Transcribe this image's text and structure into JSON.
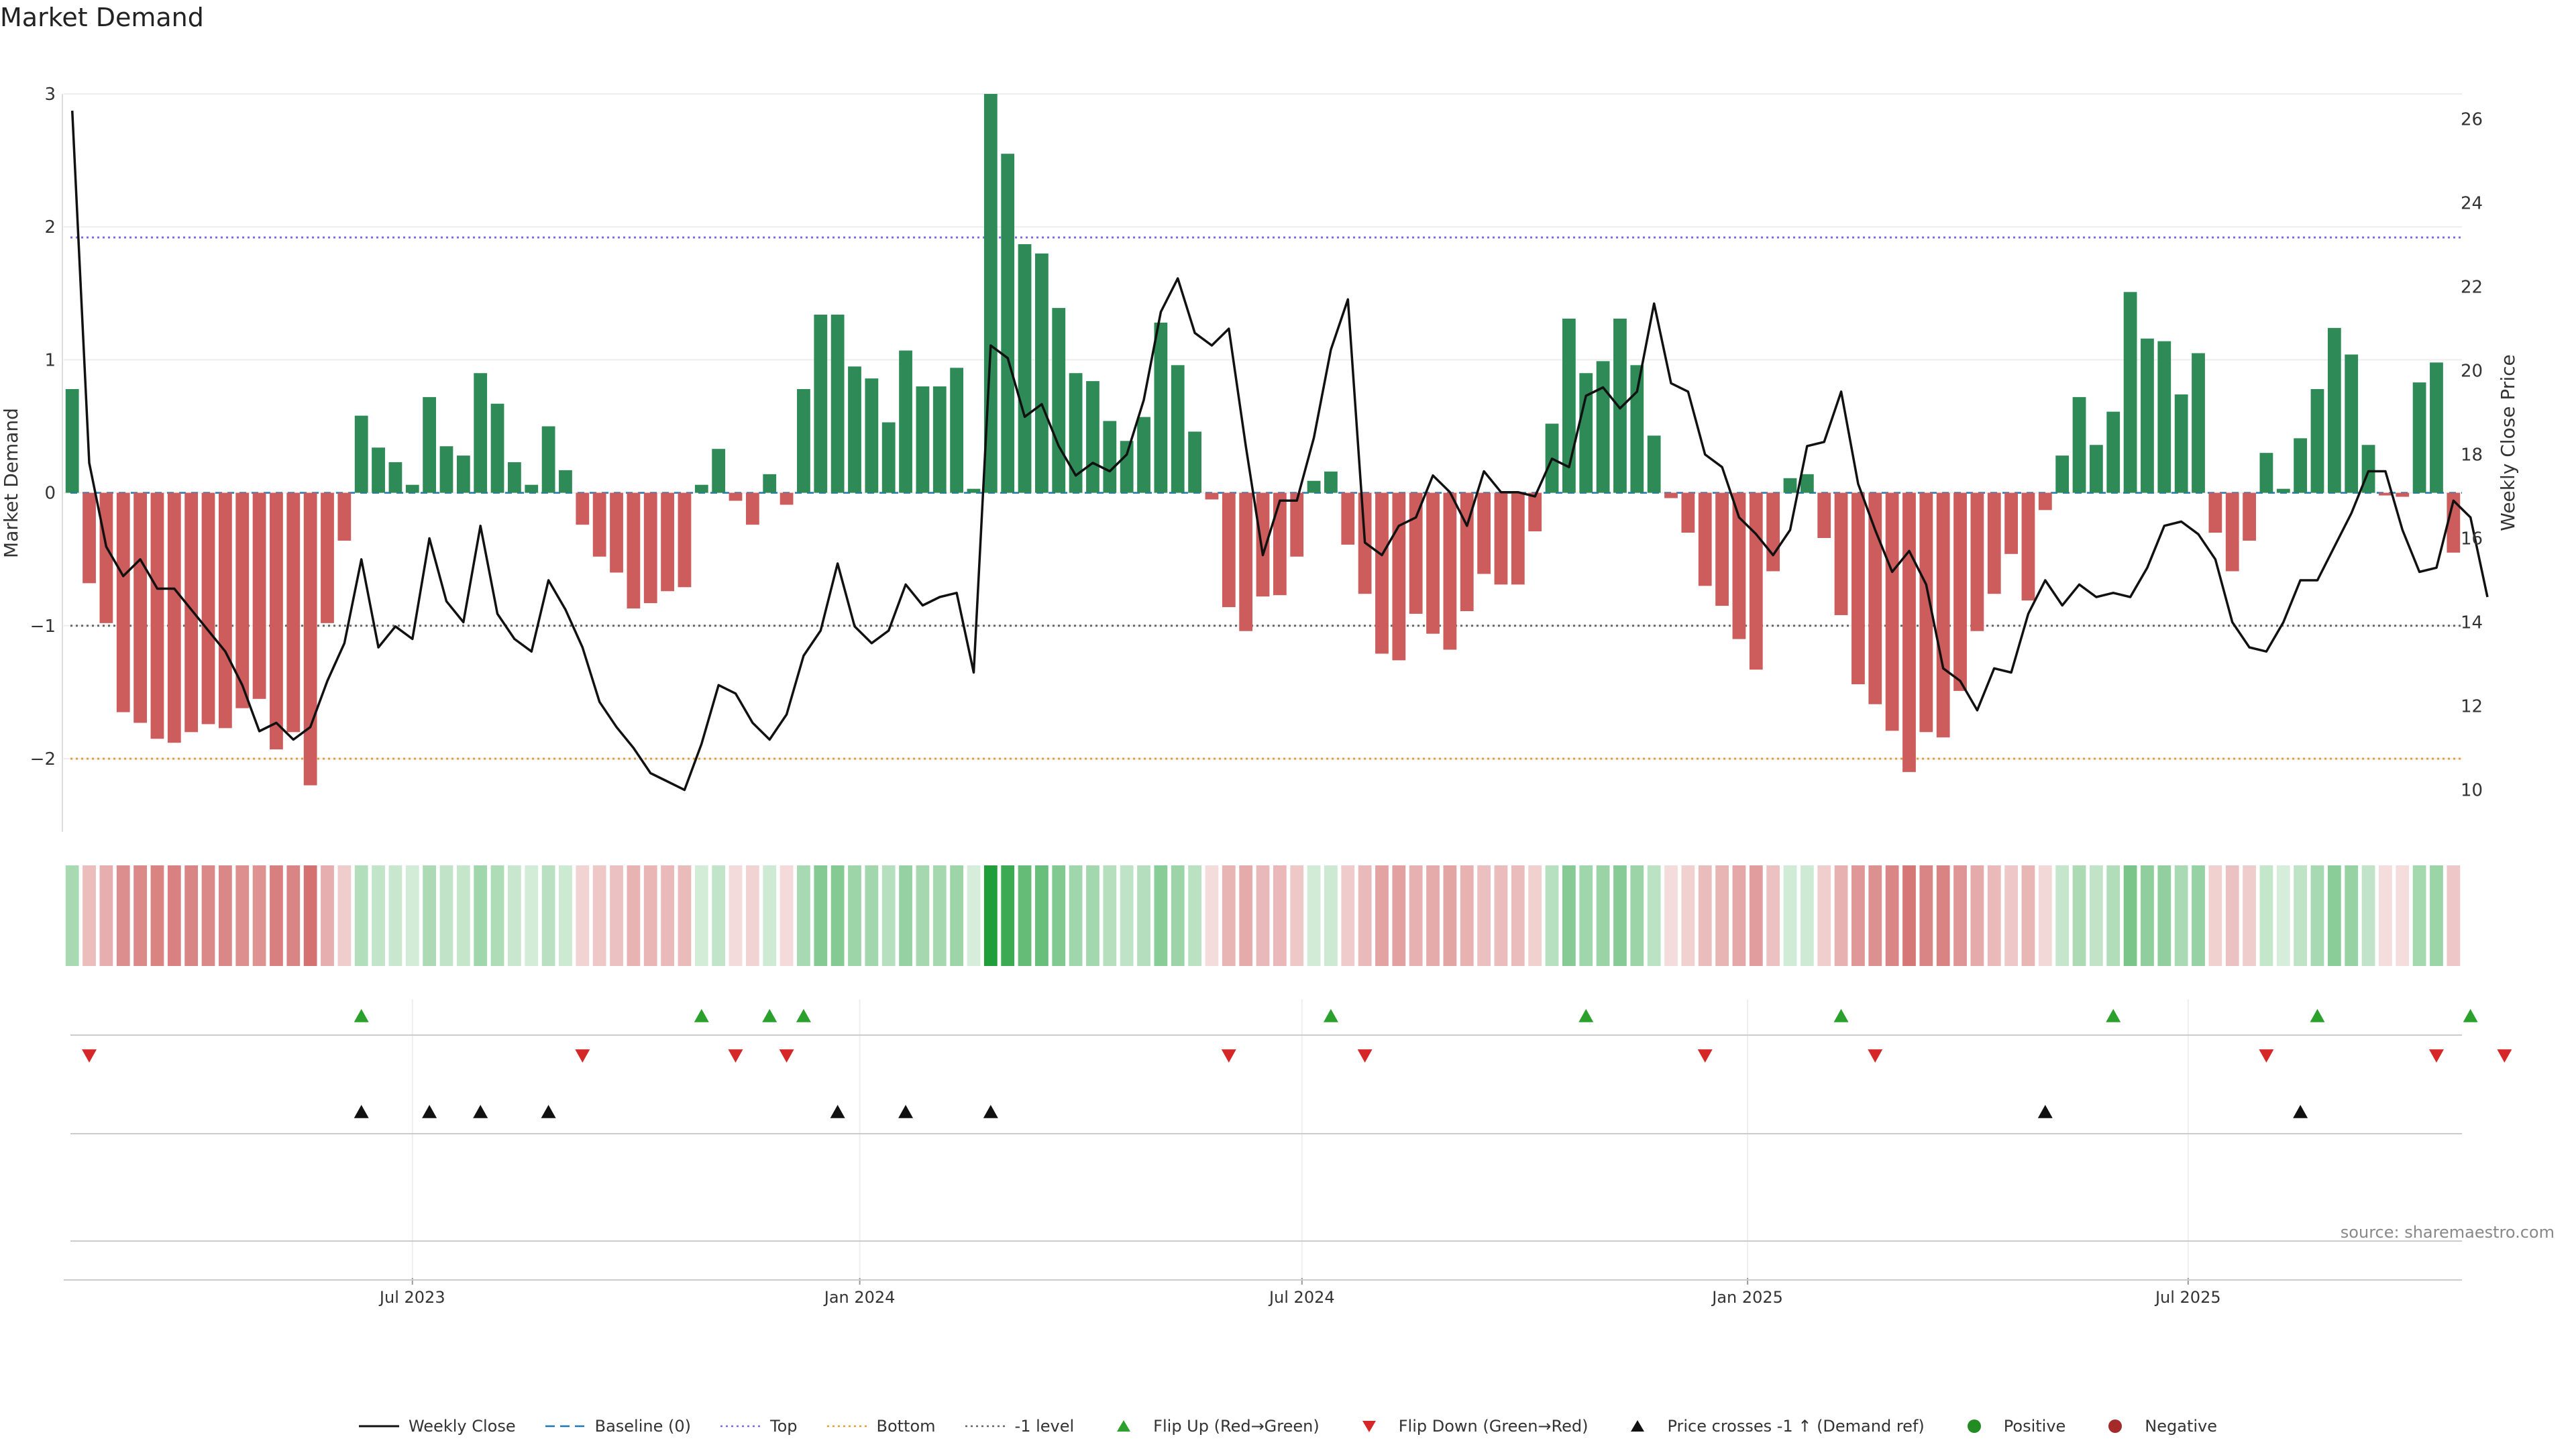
{
  "title": "Market Demand",
  "source": "source: sharemaestro.com",
  "colors": {
    "positive": "#2e8b57",
    "negative": "#cd5c5c",
    "line": "#111111",
    "top": "#7b68ee",
    "bottom": "#e69a3a",
    "minus_one": "#666666",
    "flip_up": "#2ca02c",
    "flip_down": "#d62728"
  },
  "chart_data": {
    "type": "bar",
    "ylabel": "Market Demand",
    "y2label": "Weekly Close Price",
    "ylim": [
      -2.55,
      3.0
    ],
    "y2lim": [
      9.0,
      26.6
    ],
    "yticks": [
      "3",
      "2",
      "1",
      "0",
      "−1",
      "−2"
    ],
    "y2ticks": [
      "26",
      "24",
      "22",
      "20",
      "18",
      "16",
      "14",
      "12",
      "10"
    ],
    "xticks": [
      "Jul 2023",
      "Jan 2024",
      "Jul 2024",
      "Jan 2025",
      "Jul 2025"
    ],
    "xtick_week_index": [
      20.5,
      46.8,
      72.8,
      99.0,
      124.9
    ],
    "reference_lines": {
      "top": 1.92,
      "bottom": -2.0,
      "minus_one": -1.0,
      "baseline": 0
    },
    "demand": [
      0.78,
      -0.68,
      -0.98,
      -1.65,
      -1.73,
      -1.85,
      -1.88,
      -1.8,
      -1.74,
      -1.77,
      -1.62,
      -1.55,
      -1.93,
      -1.8,
      -2.2,
      -0.98,
      -0.36,
      0.58,
      0.34,
      0.23,
      0.06,
      0.72,
      0.35,
      0.28,
      0.9,
      0.67,
      0.23,
      0.06,
      0.5,
      0.17,
      -0.24,
      -0.48,
      -0.6,
      -0.87,
      -0.83,
      -0.74,
      -0.71,
      0.06,
      0.33,
      -0.06,
      -0.24,
      0.14,
      -0.09,
      0.78,
      1.34,
      1.34,
      0.95,
      0.86,
      0.53,
      1.07,
      0.8,
      0.8,
      0.94,
      0.03,
      3.0,
      2.55,
      1.87,
      1.8,
      1.39,
      0.9,
      0.84,
      0.54,
      0.39,
      0.57,
      1.28,
      0.96,
      0.46,
      -0.05,
      -0.86,
      -1.04,
      -0.78,
      -0.77,
      -0.48,
      0.09,
      0.16,
      -0.39,
      -0.76,
      -1.21,
      -1.26,
      -0.91,
      -1.06,
      -1.18,
      -0.89,
      -0.61,
      -0.69,
      -0.69,
      -0.29,
      0.52,
      1.31,
      0.9,
      0.99,
      1.31,
      0.96,
      0.43,
      -0.04,
      -0.3,
      -0.7,
      -0.85,
      -1.1,
      -1.33,
      -0.59,
      0.11,
      0.14,
      -0.34,
      -0.92,
      -1.44,
      -1.59,
      -1.79,
      -2.1,
      -1.8,
      -1.84,
      -1.49,
      -1.04,
      -0.76,
      -0.46,
      -0.81,
      -0.13,
      0.28,
      0.72,
      0.36,
      0.61,
      1.51,
      1.16,
      1.14,
      0.74,
      1.05,
      -0.3,
      -0.59,
      -0.36,
      0.3,
      0.03,
      0.41,
      0.78,
      1.24,
      1.04,
      0.36,
      -0.02,
      -0.03,
      0.83,
      0.98,
      -0.45
    ],
    "weekly_close": [
      26.2,
      17.8,
      15.8,
      15.1,
      15.5,
      14.8,
      14.8,
      14.3,
      13.8,
      13.3,
      12.5,
      11.4,
      11.6,
      11.2,
      11.5,
      12.6,
      13.5,
      15.5,
      13.4,
      13.9,
      13.6,
      16.0,
      14.5,
      14.0,
      16.3,
      14.2,
      13.6,
      13.3,
      15.0,
      14.3,
      13.4,
      12.1,
      11.5,
      11.0,
      10.4,
      10.2,
      10.0,
      11.1,
      12.5,
      12.3,
      11.6,
      11.2,
      11.8,
      13.2,
      13.8,
      15.4,
      13.9,
      13.5,
      13.8,
      14.9,
      14.4,
      14.6,
      14.7,
      12.8,
      20.6,
      20.3,
      18.9,
      19.2,
      18.2,
      17.5,
      17.8,
      17.6,
      18.0,
      19.3,
      21.4,
      22.2,
      20.9,
      20.6,
      21.0,
      18.2,
      15.6,
      16.9,
      16.9,
      18.4,
      20.5,
      21.7,
      15.9,
      15.6,
      16.3,
      16.5,
      17.5,
      17.1,
      16.3,
      17.6,
      17.1,
      17.1,
      17.0,
      17.9,
      17.7,
      19.4,
      19.6,
      19.1,
      19.5,
      21.6,
      19.7,
      19.5,
      18.0,
      17.7,
      16.5,
      16.1,
      15.6,
      16.2,
      18.2,
      18.3,
      19.5,
      17.3,
      16.2,
      15.2,
      15.7,
      14.9,
      12.9,
      12.6,
      11.9,
      12.9,
      12.8,
      14.2,
      15.0,
      14.4,
      14.9,
      14.6,
      14.7,
      14.6,
      15.3,
      16.3,
      16.4,
      16.1,
      15.5,
      14.0,
      13.4,
      13.3,
      14.0,
      15.0,
      15.0,
      15.8,
      16.6,
      17.6,
      17.6,
      16.2,
      15.2,
      15.3,
      16.9,
      16.5,
      14.6
    ],
    "flip_up_weeks": [
      17,
      37,
      41,
      43,
      74,
      89,
      104,
      120,
      132,
      141
    ],
    "flip_down_weeks": [
      1,
      30,
      39,
      42,
      68,
      76,
      96,
      106,
      129,
      139,
      143
    ],
    "price_cross_weeks": [
      17,
      21,
      24,
      28,
      45,
      49,
      54,
      116,
      131
    ]
  },
  "legend": [
    {
      "label": "Weekly Close",
      "kind": "line",
      "color": "#111111"
    },
    {
      "label": "Baseline (0)",
      "kind": "dash",
      "color": "#1f77b4"
    },
    {
      "label": "Top",
      "kind": "dot",
      "color": "#7b68ee"
    },
    {
      "label": "Bottom",
      "kind": "dot",
      "color": "#e69a3a"
    },
    {
      "label": "-1 level",
      "kind": "dot",
      "color": "#666666"
    },
    {
      "label": "Flip Up (Red→Green)",
      "kind": "tri-up",
      "color": "#2ca02c"
    },
    {
      "label": "Flip Down (Green→Red)",
      "kind": "tri-down",
      "color": "#d62728"
    },
    {
      "label": "Price crosses -1 ↑ (Demand ref)",
      "kind": "tri-up",
      "color": "#111111"
    },
    {
      "label": "Positive",
      "kind": "circle",
      "color": "#228b22"
    },
    {
      "label": "Negative",
      "kind": "circle",
      "color": "#a52a2a"
    }
  ]
}
